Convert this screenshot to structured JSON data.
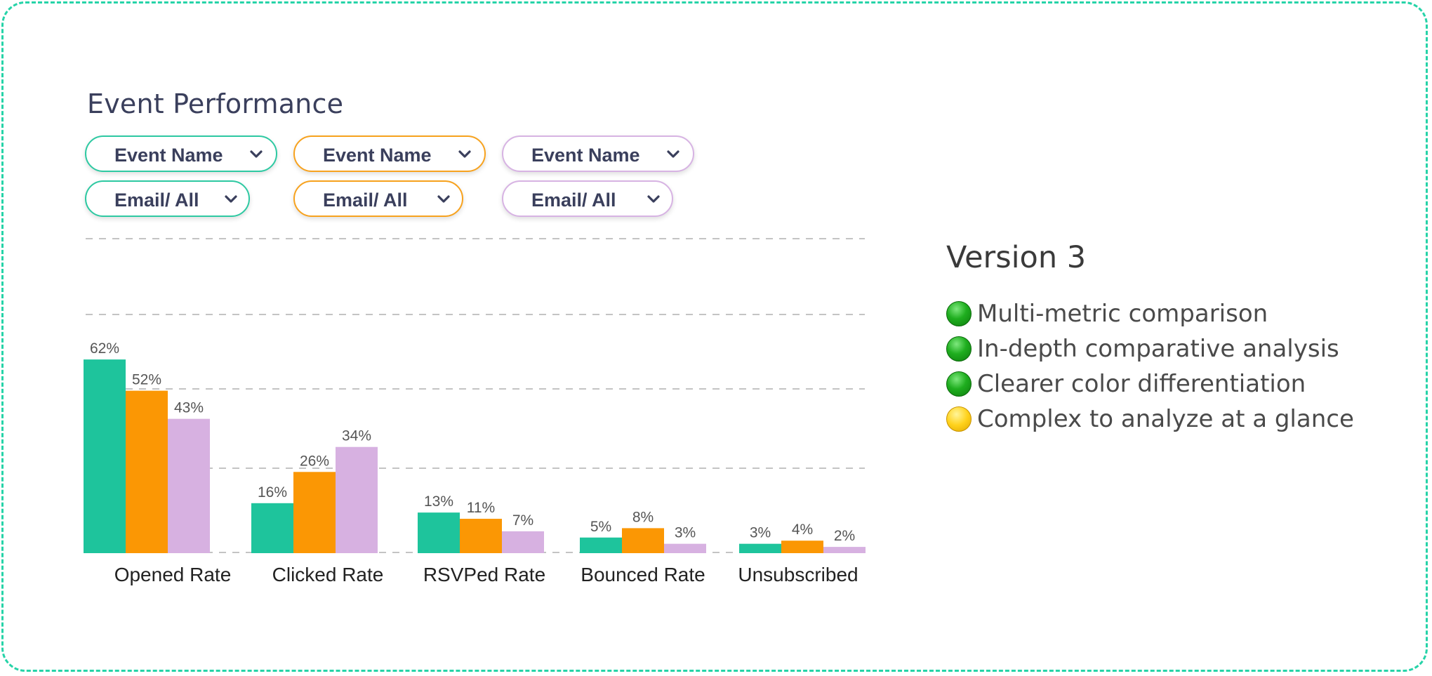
{
  "title": "Event Performance",
  "filters": {
    "row1": [
      {
        "label": "Event Name",
        "color": "#2ec9a2"
      },
      {
        "label": "Event Name",
        "color": "#f7a21e"
      },
      {
        "label": "Event Name",
        "color": "#d7b3e3"
      }
    ],
    "row2": [
      {
        "label": "Email/ All",
        "color": "#2ec9a2"
      },
      {
        "label": "Email/ All",
        "color": "#f7a21e"
      },
      {
        "label": "Email/ All",
        "color": "#d7b3e3"
      }
    ]
  },
  "chart_data": {
    "type": "bar",
    "categories": [
      "Opened Rate",
      "Clicked Rate",
      "RSVPed Rate",
      "Bounced Rate",
      "Unsubscribed"
    ],
    "series": [
      {
        "values": [
          62,
          16,
          13,
          5,
          3
        ],
        "color": "#1ec49c"
      },
      {
        "values": [
          52,
          26,
          11,
          8,
          4
        ],
        "color": "#fb9704"
      },
      {
        "values": [
          43,
          34,
          7,
          3,
          2
        ],
        "color": "#d7b1e1"
      }
    ],
    "value_labels": [
      [
        "62%",
        "16%",
        "13%",
        "5%",
        "3%"
      ],
      [
        "52%",
        "26%",
        "11%",
        "8%",
        "4%"
      ],
      [
        "43%",
        "34%",
        "7%",
        "3%",
        "2%"
      ]
    ],
    "ylim": [
      0,
      100
    ],
    "grid": true,
    "legend": "none"
  },
  "version": {
    "title": "Version 3",
    "points": [
      {
        "text": "Multi-metric comparison",
        "status": "green"
      },
      {
        "text": "In-depth comparative analysis",
        "status": "green"
      },
      {
        "text": "Clearer color differentiation",
        "status": "green"
      },
      {
        "text": "Complex to analyze at a glance",
        "status": "yellow"
      }
    ]
  }
}
